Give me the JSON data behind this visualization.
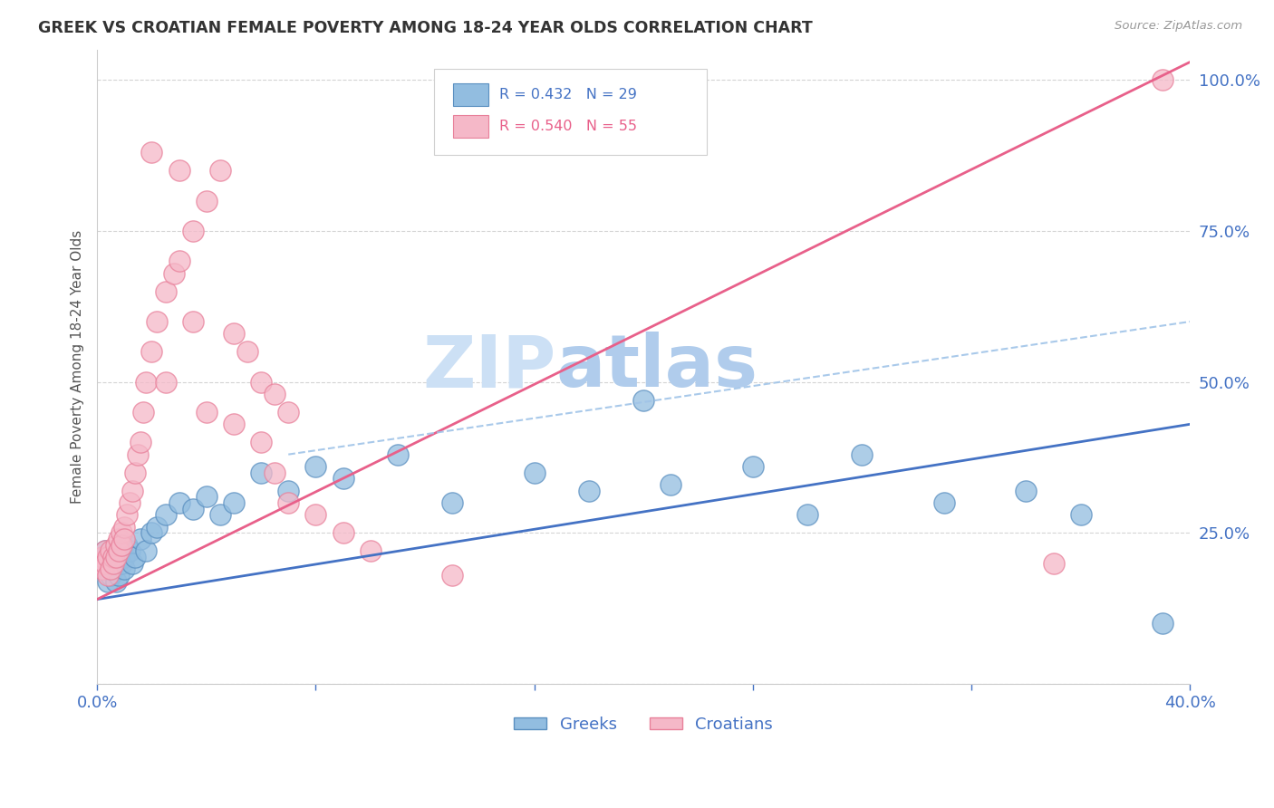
{
  "title": "GREEK VS CROATIAN FEMALE POVERTY AMONG 18-24 YEAR OLDS CORRELATION CHART",
  "source": "Source: ZipAtlas.com",
  "ylabel": "Female Poverty Among 18-24 Year Olds",
  "xlim": [
    0.0,
    0.4
  ],
  "ylim": [
    0.0,
    1.05
  ],
  "greek_color": "#92bde0",
  "greek_edge_color": "#5a8fc0",
  "croatian_color": "#f5b8c8",
  "croatian_edge_color": "#e8809a",
  "greek_line_color": "#4472c4",
  "croatian_line_color": "#e8608a",
  "dashed_line_color": "#a0c4e8",
  "title_color": "#333333",
  "tick_color": "#4472c4",
  "grid_color": "#d0d0d0",
  "watermark_zi_color": "#d8eaf8",
  "watermark_atlas_color": "#b8d4f0",
  "background_color": "#ffffff",
  "greek_line_x0": 0.0,
  "greek_line_y0": 0.14,
  "greek_line_x1": 0.4,
  "greek_line_y1": 0.43,
  "croatian_line_x0": 0.0,
  "croatian_line_y0": 0.14,
  "croatian_line_x1": 0.4,
  "croatian_line_y1": 1.03,
  "dashed_line_x0": 0.07,
  "dashed_line_y0": 0.38,
  "dashed_line_x1": 0.4,
  "dashed_line_y1": 0.6,
  "greeks_x": [
    0.001,
    0.002,
    0.003,
    0.003,
    0.004,
    0.004,
    0.005,
    0.005,
    0.006,
    0.006,
    0.007,
    0.007,
    0.008,
    0.008,
    0.009,
    0.009,
    0.01,
    0.01,
    0.011,
    0.012,
    0.013,
    0.014,
    0.016,
    0.018,
    0.02,
    0.022,
    0.025,
    0.03,
    0.035,
    0.04,
    0.045,
    0.05,
    0.06,
    0.07,
    0.08,
    0.09,
    0.11,
    0.13,
    0.16,
    0.18,
    0.2,
    0.21,
    0.24,
    0.26,
    0.28,
    0.31,
    0.34,
    0.36,
    0.39
  ],
  "greeks_y": [
    0.2,
    0.19,
    0.22,
    0.21,
    0.2,
    0.17,
    0.21,
    0.18,
    0.22,
    0.19,
    0.2,
    0.17,
    0.21,
    0.18,
    0.22,
    0.2,
    0.21,
    0.19,
    0.23,
    0.22,
    0.2,
    0.21,
    0.24,
    0.22,
    0.25,
    0.26,
    0.28,
    0.3,
    0.29,
    0.31,
    0.28,
    0.3,
    0.35,
    0.32,
    0.36,
    0.34,
    0.38,
    0.3,
    0.35,
    0.32,
    0.47,
    0.33,
    0.36,
    0.28,
    0.38,
    0.3,
    0.32,
    0.28,
    0.1
  ],
  "croatians_x": [
    0.001,
    0.002,
    0.002,
    0.003,
    0.003,
    0.004,
    0.004,
    0.005,
    0.005,
    0.006,
    0.006,
    0.007,
    0.007,
    0.008,
    0.008,
    0.009,
    0.009,
    0.01,
    0.01,
    0.011,
    0.012,
    0.013,
    0.014,
    0.015,
    0.016,
    0.017,
    0.018,
    0.02,
    0.022,
    0.025,
    0.028,
    0.03,
    0.035,
    0.04,
    0.045,
    0.05,
    0.055,
    0.06,
    0.065,
    0.07,
    0.02,
    0.025,
    0.03,
    0.035,
    0.04,
    0.05,
    0.06,
    0.065,
    0.07,
    0.08,
    0.09,
    0.1,
    0.13,
    0.35,
    0.39
  ],
  "croatians_y": [
    0.2,
    0.21,
    0.19,
    0.22,
    0.2,
    0.21,
    0.18,
    0.22,
    0.19,
    0.21,
    0.2,
    0.23,
    0.21,
    0.24,
    0.22,
    0.25,
    0.23,
    0.26,
    0.24,
    0.28,
    0.3,
    0.32,
    0.35,
    0.38,
    0.4,
    0.45,
    0.5,
    0.55,
    0.6,
    0.65,
    0.68,
    0.7,
    0.75,
    0.8,
    0.85,
    0.58,
    0.55,
    0.5,
    0.48,
    0.45,
    0.88,
    0.5,
    0.85,
    0.6,
    0.45,
    0.43,
    0.4,
    0.35,
    0.3,
    0.28,
    0.25,
    0.22,
    0.18,
    0.2,
    1.0
  ]
}
